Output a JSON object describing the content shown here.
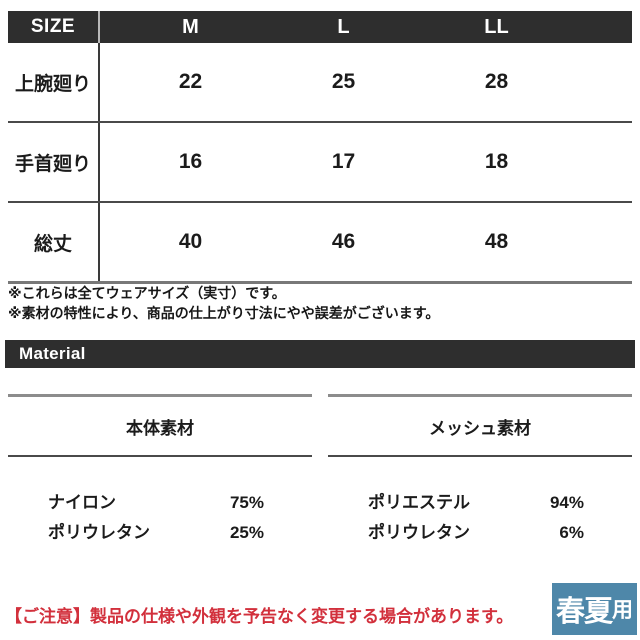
{
  "size_table": {
    "header": [
      "SIZE",
      "M",
      "L",
      "LL"
    ],
    "rows": [
      {
        "label": "上腕廻り",
        "values": [
          "22",
          "25",
          "28"
        ]
      },
      {
        "label": "手首廻り",
        "values": [
          "16",
          "17",
          "18"
        ]
      },
      {
        "label": "総丈",
        "values": [
          "40",
          "46",
          "48"
        ]
      }
    ]
  },
  "notes": [
    "※これらは全てウェアサイズ（実寸）です。",
    "※素材の特性により、商品の仕上がり寸法にやや誤差がございます。"
  ],
  "material": {
    "section_title": "Material",
    "columns": [
      {
        "title": "本体素材",
        "rows": [
          {
            "name": "ナイロン",
            "percent": "75%"
          },
          {
            "name": "ポリウレタン",
            "percent": "25%"
          }
        ]
      },
      {
        "title": "メッシュ素材",
        "rows": [
          {
            "name": "ポリエステル",
            "percent": "94%"
          },
          {
            "name": "ポリウレタン",
            "percent": "6%"
          }
        ]
      }
    ]
  },
  "caution": "【ご注意】製品の仕様や外観を予告なく変更する場合があります。",
  "badge": {
    "label_main": "春夏",
    "label_suffix": "用"
  },
  "colors": {
    "header_bg": "#2e2e2e",
    "caution_red": "#d2303c",
    "badge_blue": "#4e87a9"
  }
}
